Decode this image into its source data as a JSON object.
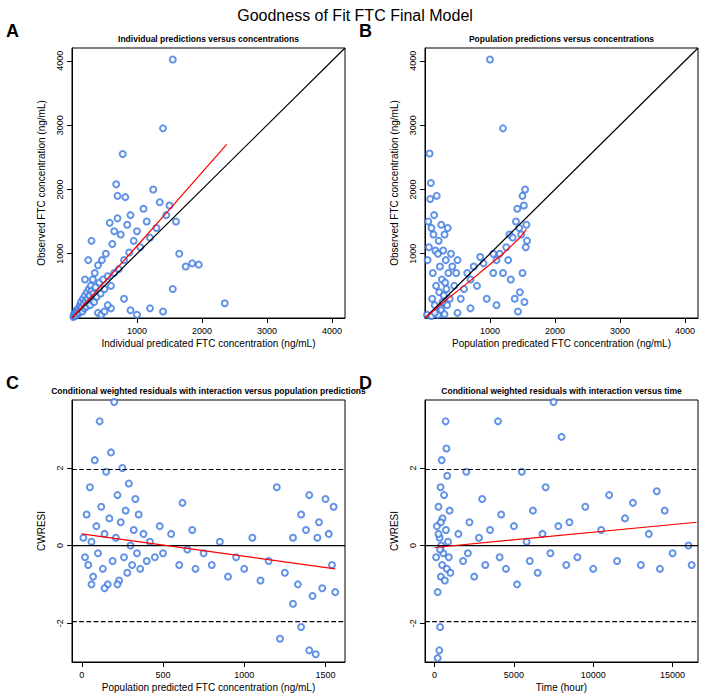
{
  "title": "Goodness of Fit FTC Final Model",
  "chart_data": [
    {
      "panel": "A",
      "type": "scatter",
      "title": "Individual predictions versus concentrations",
      "x_label": "Individual predicated FTC concentration (ng/mL)",
      "y_label": "Observed FTC concentration (ng/mL)",
      "xlim": [
        0,
        4200
      ],
      "ylim": [
        0,
        4200
      ],
      "xticks": [
        1000,
        2000,
        3000,
        4000
      ],
      "yticks": [
        1000,
        2000,
        3000,
        4000
      ],
      "grid": false,
      "series": [
        {
          "type": "scatter",
          "color": "#3b78e0",
          "marker": "open_circle",
          "x": [
            20,
            30,
            40,
            50,
            60,
            70,
            80,
            90,
            100,
            110,
            120,
            130,
            140,
            150,
            160,
            170,
            180,
            190,
            200,
            210,
            220,
            230,
            240,
            250,
            260,
            270,
            280,
            290,
            300,
            310,
            320,
            330,
            340,
            350,
            360,
            380,
            400,
            420,
            440,
            460,
            480,
            500,
            520,
            550,
            580,
            600,
            620,
            650,
            680,
            700,
            720,
            750,
            780,
            800,
            820,
            850,
            880,
            900,
            950,
            1000,
            1050,
            1100,
            1150,
            1200,
            1250,
            1300,
            1350,
            1400,
            1450,
            1500,
            1550,
            1600,
            1650,
            1750,
            1850,
            1950,
            2350,
            1550,
            1400,
            1200,
            900,
            1000,
            800,
            600,
            400,
            700,
            650,
            300,
            250,
            200,
            450,
            500,
            550
          ],
          "values": [
            15,
            60,
            30,
            80,
            40,
            120,
            100,
            60,
            150,
            90,
            200,
            130,
            250,
            170,
            100,
            300,
            220,
            150,
            350,
            260,
            180,
            400,
            300,
            230,
            450,
            350,
            200,
            500,
            420,
            280,
            600,
            380,
            250,
            700,
            480,
            330,
            820,
            550,
            380,
            900,
            600,
            450,
            1000,
            650,
            1480,
            500,
            1150,
            700,
            2080,
            1900,
            760,
            1300,
            2550,
            900,
            1880,
            1450,
            1020,
            1600,
            1200,
            1350,
            1100,
            1700,
            1500,
            1250,
            2000,
            1400,
            1800,
            2950,
            1600,
            1750,
            4020,
            1500,
            1000,
            800,
            850,
            830,
            230,
            450,
            100,
            150,
            120,
            50,
            300,
            150,
            80,
            1550,
            1350,
            1200,
            900,
            600,
            50,
            100,
            200
          ]
        },
        {
          "type": "line",
          "color": "#000000",
          "line_style": "solid",
          "x": [
            0,
            4200
          ],
          "values": [
            0,
            4200
          ]
        },
        {
          "type": "line",
          "color": "#ff0000",
          "line_style": "solid",
          "x": [
            0,
            500,
            1000,
            1500,
            2380
          ],
          "values": [
            0,
            560,
            1120,
            1690,
            2700
          ]
        }
      ]
    },
    {
      "panel": "B",
      "type": "scatter",
      "title": "Population predictions versus concentrations",
      "x_label": "Population predicated FTC concentration (ng/mL)",
      "y_label": "Observed FTC concentration (ng/mL)",
      "xlim": [
        0,
        4200
      ],
      "ylim": [
        0,
        4200
      ],
      "xticks": [
        1000,
        2000,
        3000,
        4000
      ],
      "yticks": [
        1000,
        2000,
        3000,
        4000
      ],
      "grid": false,
      "series": [
        {
          "type": "scatter",
          "color": "#3b78e0",
          "marker": "open_circle",
          "x": [
            30,
            40,
            50,
            60,
            70,
            80,
            90,
            100,
            110,
            120,
            130,
            140,
            150,
            160,
            170,
            180,
            190,
            200,
            210,
            220,
            230,
            240,
            250,
            260,
            270,
            280,
            290,
            300,
            310,
            320,
            330,
            340,
            350,
            360,
            380,
            400,
            420,
            450,
            480,
            500,
            550,
            600,
            650,
            700,
            750,
            800,
            850,
            1000,
            950,
            900,
            1050,
            1100,
            1150,
            1200,
            1250,
            1280,
            1300,
            1320,
            1350,
            1380,
            1400,
            1420,
            1450,
            1480,
            1500,
            1520,
            1540,
            1550,
            1560,
            1570,
            1430,
            1460,
            1500,
            1530,
            1100,
            1200,
            1050,
            700,
            500,
            200,
            100,
            150,
            250,
            300
          ],
          "values": [
            50,
            900,
            1500,
            1100,
            2560,
            1850,
            2100,
            1400,
            300,
            700,
            1300,
            1600,
            200,
            1050,
            500,
            1900,
            100,
            1000,
            1200,
            400,
            800,
            150,
            1450,
            600,
            250,
            1050,
            350,
            1300,
            550,
            900,
            450,
            200,
            1400,
            700,
            300,
            1000,
            800,
            500,
            700,
            900,
            300,
            450,
            700,
            600,
            800,
            500,
            950,
            4020,
            300,
            850,
            700,
            900,
            1000,
            2950,
            1100,
            900,
            1300,
            600,
            1250,
            300,
            1500,
            1700,
            1400,
            1300,
            1900,
            1750,
            2000,
            1100,
            1450,
            1200,
            100,
            400,
            700,
            250,
            200,
            700,
            1000,
            150,
            80,
            50,
            30,
            80,
            120,
            60
          ]
        },
        {
          "type": "line",
          "color": "#000000",
          "line_style": "solid",
          "x": [
            0,
            4200
          ],
          "values": [
            0,
            4200
          ]
        },
        {
          "type": "line",
          "color": "#ff0000",
          "line_style": "solid",
          "x": [
            0,
            300,
            600,
            900,
            1200,
            1450,
            1560
          ],
          "values": [
            0,
            260,
            500,
            750,
            1000,
            1240,
            1380
          ]
        }
      ]
    },
    {
      "panel": "C",
      "type": "scatter",
      "title": "Conditional weighted residuals with interaction versus population predictions",
      "x_label": "Population predicted FTC concentration (ng/mL)",
      "y_label": "CWRESI",
      "xlim": [
        -60,
        1620
      ],
      "ylim": [
        -3.0,
        3.75
      ],
      "xticks": [
        0,
        500,
        1000,
        1500
      ],
      "yticks": [
        -2,
        0,
        2
      ],
      "grid": false,
      "series": [
        {
          "type": "scatter",
          "color": "#3b78e0",
          "marker": "open_circle",
          "x": [
            10,
            20,
            30,
            40,
            50,
            60,
            70,
            80,
            90,
            100,
            110,
            120,
            130,
            140,
            150,
            160,
            170,
            180,
            190,
            200,
            210,
            220,
            230,
            240,
            250,
            260,
            270,
            280,
            290,
            300,
            310,
            320,
            330,
            340,
            350,
            360,
            380,
            400,
            420,
            450,
            480,
            500,
            550,
            600,
            620,
            650,
            680,
            700,
            750,
            800,
            850,
            900,
            950,
            1000,
            1050,
            1100,
            1150,
            1200,
            1220,
            1250,
            1300,
            1330,
            1350,
            1380,
            1400,
            1420,
            1440,
            1460,
            1480,
            1500,
            1520,
            1540,
            1550,
            1560,
            1400,
            1450,
            1300,
            1350,
            60,
            140,
            220
          ],
          "values": [
            0.2,
            -0.3,
            0.8,
            -0.5,
            1.5,
            0.1,
            -0.8,
            2.2,
            0.5,
            -0.2,
            3.2,
            1.0,
            -0.6,
            0.3,
            1.9,
            -1.0,
            0.7,
            2.4,
            -0.4,
            3.7,
            0.2,
            1.3,
            -0.9,
            0.6,
            2.0,
            -0.3,
            0.9,
            -0.7,
            1.6,
            0.0,
            -0.5,
            0.4,
            1.2,
            -0.2,
            0.8,
            -0.6,
            0.3,
            -0.4,
            0.1,
            -0.3,
            0.5,
            -0.2,
            0.3,
            -0.5,
            1.1,
            -0.1,
            0.4,
            -0.6,
            -0.2,
            -0.5,
            0.1,
            -0.8,
            -0.3,
            -0.6,
            0.2,
            -0.9,
            -0.4,
            1.5,
            -2.4,
            -0.7,
            0.2,
            -1.0,
            -2.1,
            0.4,
            -2.7,
            -1.3,
            -2.8,
            0.6,
            -1.1,
            1.2,
            0.3,
            -0.5,
            1.0,
            -1.2,
            1.3,
            0.2,
            -1.5,
            0.8,
            -1.0,
            -1.1,
            -1.0
          ]
        },
        {
          "type": "line",
          "color": "#000000",
          "line_style": "solid",
          "x": [
            -60,
            1620
          ],
          "values": [
            0,
            0
          ]
        },
        {
          "type": "line",
          "color": "#000000",
          "line_style": "dashed",
          "x": [
            -60,
            1620
          ],
          "values": [
            1.96,
            1.96
          ]
        },
        {
          "type": "line",
          "color": "#000000",
          "line_style": "dashed",
          "x": [
            -60,
            1620
          ],
          "values": [
            -1.96,
            -1.96
          ]
        },
        {
          "type": "line",
          "color": "#ff0000",
          "line_style": "solid",
          "x": [
            0,
            1560
          ],
          "values": [
            0.3,
            -0.6
          ]
        }
      ]
    },
    {
      "panel": "D",
      "type": "scatter",
      "title": "Conditional weighted residuals with interaction versus time",
      "x_label": "Time (hour)",
      "y_label": "CWRESI",
      "xlim": [
        -600,
        16600
      ],
      "ylim": [
        -3.0,
        3.75
      ],
      "xticks": [
        0,
        5000,
        10000,
        15000
      ],
      "yticks": [
        -2,
        0,
        2
      ],
      "grid": false,
      "series": [
        {
          "type": "scatter",
          "color": "#3b78e0",
          "marker": "open_circle",
          "x": [
            100,
            150,
            200,
            250,
            300,
            320,
            350,
            380,
            400,
            420,
            450,
            480,
            500,
            550,
            600,
            650,
            700,
            720,
            750,
            780,
            800,
            850,
            900,
            950,
            1000,
            1500,
            1800,
            2000,
            2100,
            2200,
            2500,
            2800,
            3000,
            3200,
            3500,
            4000,
            4100,
            4200,
            4500,
            5000,
            5200,
            5500,
            5800,
            6000,
            6200,
            6500,
            6800,
            7000,
            7300,
            7500,
            7800,
            8000,
            8300,
            8500,
            9000,
            9500,
            10000,
            10500,
            11000,
            11500,
            12000,
            12500,
            13000,
            13500,
            14000,
            14200,
            14500,
            15000,
            16000,
            16200,
            200,
            250,
            350,
            400
          ],
          "values": [
            -0.3,
            0.5,
            -1.2,
            1.0,
            -2.7,
            0.2,
            -2.1,
            1.5,
            -0.8,
            0.0,
            2.2,
            -0.5,
            0.7,
            -0.2,
            1.3,
            -0.9,
            3.2,
            0.4,
            2.5,
            -0.6,
            1.8,
            0.1,
            -0.3,
            0.9,
            -0.7,
            0.3,
            -0.4,
            1.9,
            -0.2,
            0.6,
            -0.8,
            0.2,
            1.2,
            -0.5,
            0.4,
            3.2,
            -0.3,
            0.8,
            -0.6,
            0.5,
            -1.0,
            1.9,
            0.1,
            -0.4,
            0.9,
            -0.7,
            0.3,
            1.5,
            -0.2,
            3.7,
            0.5,
            2.8,
            -0.5,
            0.6,
            -0.3,
            1.0,
            -0.6,
            0.4,
            1.3,
            -0.4,
            0.7,
            1.1,
            -0.5,
            0.3,
            1.4,
            -0.6,
            0.9,
            -0.2,
            0.0,
            -0.5,
            -2.9,
            0.3,
            -0.1,
            0.6
          ]
        },
        {
          "type": "line",
          "color": "#000000",
          "line_style": "solid",
          "x": [
            -600,
            16600
          ],
          "values": [
            0,
            0
          ]
        },
        {
          "type": "line",
          "color": "#000000",
          "line_style": "dashed",
          "x": [
            -600,
            16600
          ],
          "values": [
            1.96,
            1.96
          ]
        },
        {
          "type": "line",
          "color": "#000000",
          "line_style": "dashed",
          "x": [
            -600,
            16600
          ],
          "values": [
            -1.96,
            -1.96
          ]
        },
        {
          "type": "line",
          "color": "#ff0000",
          "line_style": "solid",
          "x": [
            0,
            16500
          ],
          "values": [
            -0.05,
            0.6
          ]
        }
      ]
    }
  ]
}
